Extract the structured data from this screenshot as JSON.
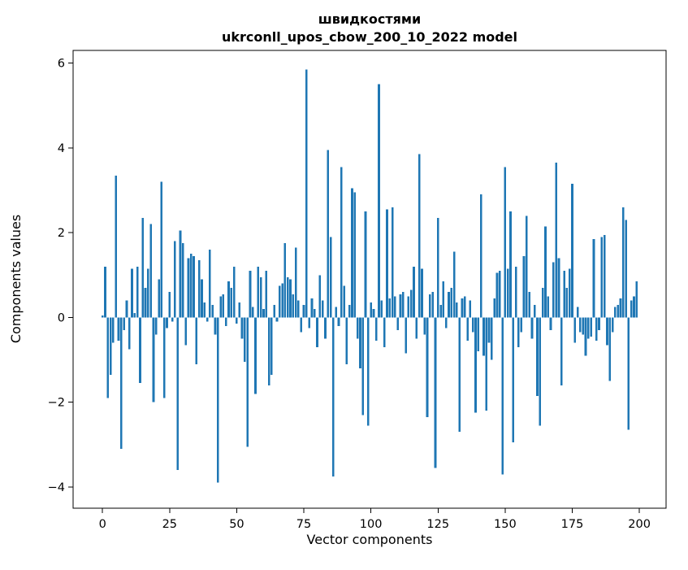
{
  "figure": {
    "title_line1": "швидкостями",
    "title_line2": "ukrconll_upos_cbow_200_10_2022 model",
    "xlabel": "Vector components",
    "ylabel": "Components values"
  },
  "chart_data": {
    "type": "bar",
    "title": "швидкостями\nukrconll_upos_cbow_200_10_2022 model",
    "xlabel": "Vector components",
    "ylabel": "Components values",
    "bar_color": "#1f77b4",
    "spine_color": "#000000",
    "legend": "none",
    "grid": false,
    "xlim": [
      -10.95,
      209.95
    ],
    "ylim": [
      -4.5,
      6.3
    ],
    "xticks": [
      0,
      25,
      50,
      75,
      100,
      125,
      150,
      175,
      200
    ],
    "yticks": [
      -4,
      -2,
      0,
      2,
      4,
      6
    ],
    "n_bars": 200,
    "bar_width_data_units": 0.8,
    "values": [
      0.05,
      1.2,
      -1.9,
      -1.35,
      -0.6,
      3.35,
      -0.55,
      -3.1,
      -0.3,
      0.4,
      -0.75,
      1.15,
      0.1,
      1.2,
      -1.55,
      2.35,
      0.7,
      1.15,
      2.2,
      -2.0,
      -0.4,
      0.9,
      3.2,
      -1.9,
      -0.25,
      0.6,
      -0.1,
      1.8,
      -3.6,
      2.05,
      1.75,
      -0.65,
      1.4,
      1.5,
      1.45,
      -1.1,
      1.35,
      0.9,
      0.35,
      -0.1,
      1.6,
      0.3,
      -0.4,
      -3.9,
      0.5,
      0.55,
      -0.2,
      0.85,
      0.7,
      1.2,
      -0.15,
      0.35,
      -0.5,
      -1.05,
      -3.05,
      1.1,
      0.25,
      -1.8,
      1.2,
      0.95,
      0.2,
      1.1,
      -1.6,
      -1.35,
      0.3,
      -0.1,
      0.75,
      0.8,
      1.75,
      0.95,
      0.9,
      0.55,
      1.65,
      0.4,
      -0.35,
      0.3,
      5.85,
      -0.25,
      0.45,
      0.2,
      -0.7,
      1.0,
      0.4,
      -0.5,
      3.95,
      1.9,
      -3.75,
      0.25,
      -0.2,
      3.55,
      0.75,
      -1.1,
      0.3,
      3.05,
      2.95,
      -0.5,
      -1.2,
      -2.3,
      2.5,
      -2.55,
      0.35,
      0.2,
      -0.55,
      5.5,
      0.4,
      -0.7,
      2.55,
      0.45,
      2.6,
      0.5,
      -0.3,
      0.55,
      0.6,
      -0.85,
      0.5,
      0.65,
      1.2,
      -0.5,
      3.85,
      1.15,
      -0.4,
      -2.35,
      0.55,
      0.6,
      -3.55,
      2.35,
      0.3,
      0.85,
      -0.25,
      0.6,
      0.7,
      1.55,
      0.35,
      -2.7,
      0.45,
      0.5,
      -0.55,
      0.4,
      -0.35,
      -2.25,
      -0.8,
      2.9,
      -0.9,
      -2.2,
      -0.6,
      -1.0,
      0.45,
      1.05,
      1.1,
      -3.7,
      3.55,
      1.15,
      2.5,
      -2.95,
      1.2,
      -0.7,
      -0.35,
      1.45,
      2.4,
      0.6,
      -0.5,
      0.3,
      -1.85,
      -2.55,
      0.7,
      2.15,
      0.5,
      -0.3,
      1.3,
      3.65,
      1.4,
      -1.6,
      1.1,
      0.7,
      1.15,
      3.15,
      -0.6,
      0.25,
      -0.35,
      -0.4,
      -0.9,
      -0.5,
      -0.45,
      1.85,
      -0.55,
      -0.3,
      1.9,
      1.95,
      -0.65,
      -1.5,
      -0.35,
      0.25,
      0.3,
      0.45,
      2.6,
      2.3,
      -2.65,
      0.4,
      0.5,
      0.85
    ]
  }
}
